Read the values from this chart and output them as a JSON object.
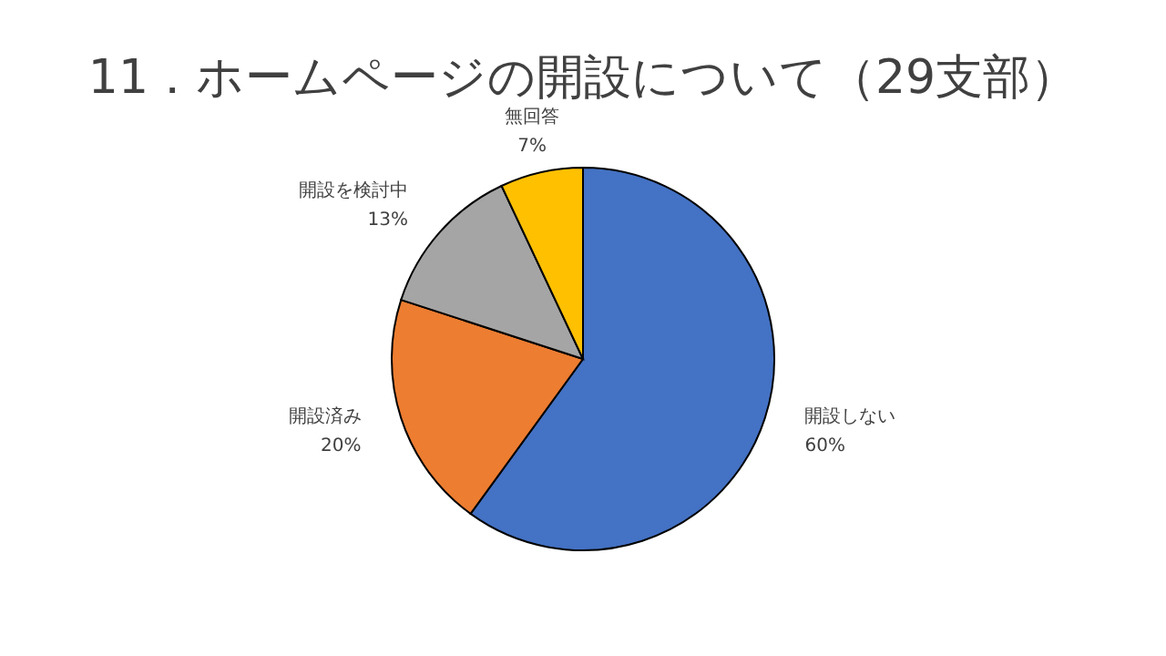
{
  "chart_data": {
    "type": "pie",
    "title": "11．ホームページの開設について（29支部）",
    "categories": [
      "開設しない",
      "開設済み",
      "開設を検討中",
      "無回答"
    ],
    "values": [
      60,
      20,
      13,
      7
    ],
    "value_labels": [
      "60%",
      "20%",
      "13%",
      "7%"
    ],
    "colors": [
      "#4472c4",
      "#ed7d31",
      "#a5a5a5",
      "#ffc000"
    ],
    "legend": false
  }
}
